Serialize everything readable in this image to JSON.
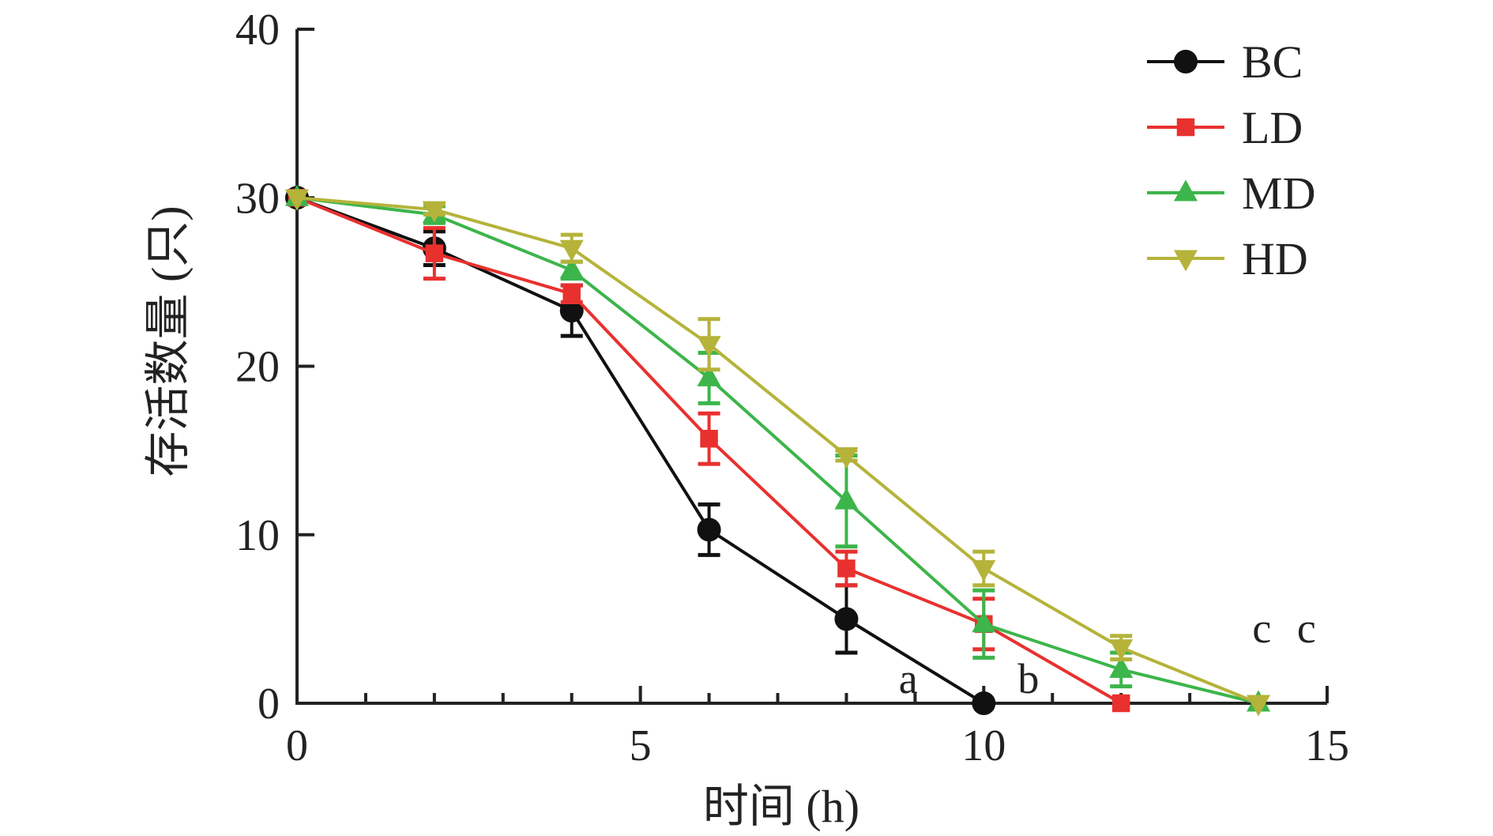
{
  "chart_data": {
    "type": "line",
    "title": "",
    "xlabel": "时间 (h)",
    "ylabel": "存活数量 (只)",
    "xlim": [
      0,
      15
    ],
    "ylim": [
      0,
      40
    ],
    "xticks": [
      0,
      5,
      10,
      15
    ],
    "yticks": [
      0,
      10,
      20,
      30,
      40
    ],
    "x_minor_step": 1,
    "grid": false,
    "legend_position": "top-right",
    "series": [
      {
        "name": "BC",
        "color": "#111111",
        "marker": "circle",
        "x": [
          0,
          2,
          4,
          6,
          8,
          10
        ],
        "y": [
          30,
          27,
          23.3,
          10.3,
          5,
          0
        ],
        "err": [
          0,
          1,
          1.5,
          1.5,
          2,
          0
        ]
      },
      {
        "name": "LD",
        "color": "#e8312f",
        "marker": "square",
        "x": [
          0,
          2,
          4,
          6,
          8,
          10,
          12
        ],
        "y": [
          30,
          26.7,
          24.3,
          15.7,
          8,
          4.7,
          0
        ],
        "err": [
          0,
          1.5,
          0.5,
          1.5,
          1,
          1.5,
          0
        ]
      },
      {
        "name": "MD",
        "color": "#3cb54a",
        "marker": "triangle-up",
        "x": [
          0,
          2,
          4,
          6,
          8,
          10,
          12,
          14
        ],
        "y": [
          30,
          29,
          25.7,
          19.3,
          12,
          4.7,
          2,
          0
        ],
        "err": [
          0,
          0.5,
          0.5,
          1.5,
          2.7,
          2,
          1,
          0
        ]
      },
      {
        "name": "HD",
        "color": "#b5b33a",
        "marker": "triangle-down",
        "x": [
          0,
          2,
          4,
          6,
          8,
          10,
          12,
          14
        ],
        "y": [
          30,
          29.3,
          27,
          21.3,
          14.7,
          8,
          3.3,
          0
        ],
        "err": [
          0,
          0.3,
          0.8,
          1.5,
          0.3,
          1,
          0.7,
          0
        ]
      }
    ],
    "annotations": [
      {
        "text": "a",
        "x": 8.9,
        "y": 0.6
      },
      {
        "text": "b",
        "x": 10.65,
        "y": 0.6
      },
      {
        "text": "c",
        "x": 14.05,
        "y": 3.6
      },
      {
        "text": "c",
        "x": 14.7,
        "y": 3.6
      }
    ]
  }
}
